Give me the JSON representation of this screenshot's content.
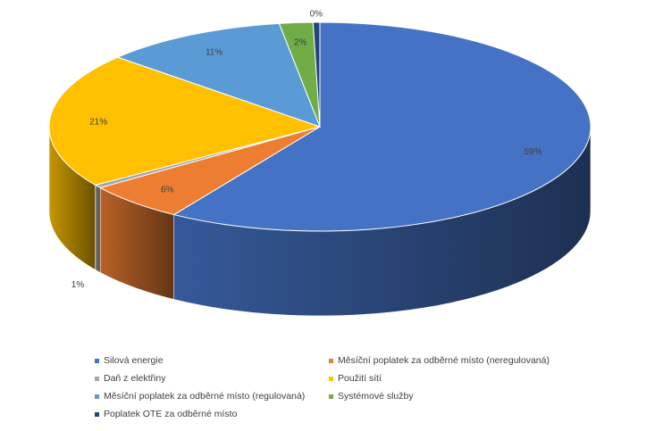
{
  "chart_data": {
    "type": "pie",
    "style": "3d",
    "title": "",
    "slices": [
      {
        "label": "Silová energie",
        "value": 59,
        "display": "59%",
        "color": "#4472C4"
      },
      {
        "label": "Měsíční poplatek za odběrné místo (neregulovaná)",
        "value": 6,
        "display": "6%",
        "color": "#ED7D31"
      },
      {
        "label": "Daň z elektřiny",
        "value": 0.5,
        "display": "1%",
        "color": "#A5A5A5"
      },
      {
        "label": "Použití sítí",
        "value": 21,
        "display": "21%",
        "color": "#FFC000"
      },
      {
        "label": "Měsíční poplatek za odběrné místo (regulovaná)",
        "value": 11,
        "display": "11%",
        "color": "#5B9BD5"
      },
      {
        "label": "Systémové služby",
        "value": 2,
        "display": "2%",
        "color": "#70AD47"
      },
      {
        "label": "Poplatek OTE za odběrné místo",
        "value": 0.4,
        "display": "0%",
        "color": "#264478"
      }
    ],
    "legend_position": "bottom"
  }
}
